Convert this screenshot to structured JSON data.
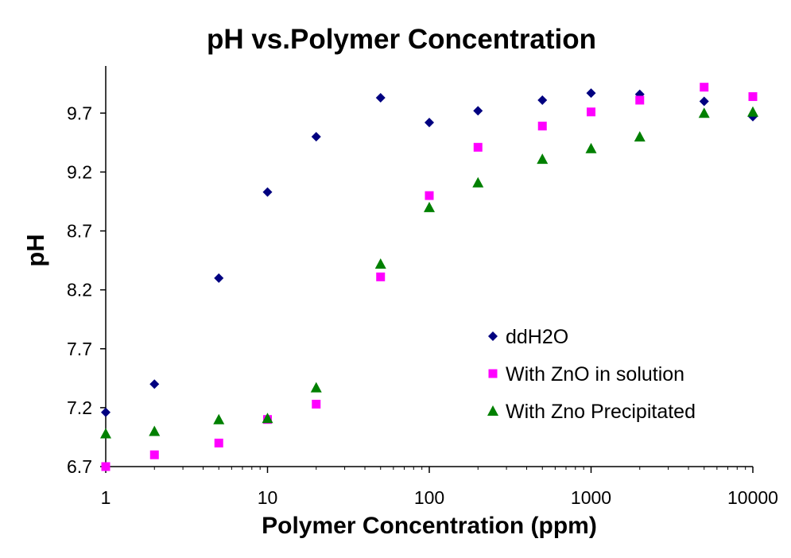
{
  "chart_data": {
    "type": "scatter",
    "title": "pH vs.Polymer Concentration",
    "xlabel": "Polymer Concentration (ppm)",
    "ylabel": "pH",
    "xscale": "log",
    "xlim": [
      1,
      10000
    ],
    "ylim": [
      6.7,
      10.1
    ],
    "xticks": [
      "1",
      "10",
      "100",
      "1000",
      "10000"
    ],
    "yticks": [
      "6.7",
      "7.2",
      "7.7",
      "8.2",
      "8.7",
      "9.2",
      "9.7"
    ],
    "grid": false,
    "legend_position": "lower-right",
    "series": [
      {
        "name": "ddH2O",
        "marker": "diamond",
        "color": "#000080",
        "x": [
          1,
          2,
          5,
          10,
          20,
          50,
          100,
          200,
          500,
          1000,
          2000,
          5000,
          10000
        ],
        "y": [
          7.16,
          7.4,
          8.3,
          9.03,
          9.5,
          9.83,
          9.62,
          9.72,
          9.81,
          9.87,
          9.86,
          9.8,
          9.67
        ]
      },
      {
        "name": "With ZnO in solution",
        "marker": "square",
        "color": "#FF00FF",
        "x": [
          1,
          2,
          5,
          10,
          20,
          50,
          100,
          200,
          500,
          1000,
          2000,
          5000,
          10000
        ],
        "y": [
          6.7,
          6.8,
          6.9,
          7.1,
          7.23,
          8.31,
          9.0,
          9.41,
          9.59,
          9.71,
          9.81,
          9.92,
          9.84
        ]
      },
      {
        "name": "With Zno Precipitated",
        "marker": "triangle",
        "color": "#008000",
        "x": [
          1,
          2,
          5,
          10,
          20,
          50,
          100,
          200,
          500,
          1000,
          2000,
          5000,
          10000
        ],
        "y": [
          6.98,
          7.0,
          7.1,
          7.11,
          7.37,
          8.42,
          8.9,
          9.11,
          9.31,
          9.4,
          9.5,
          9.7,
          9.71
        ]
      }
    ]
  }
}
